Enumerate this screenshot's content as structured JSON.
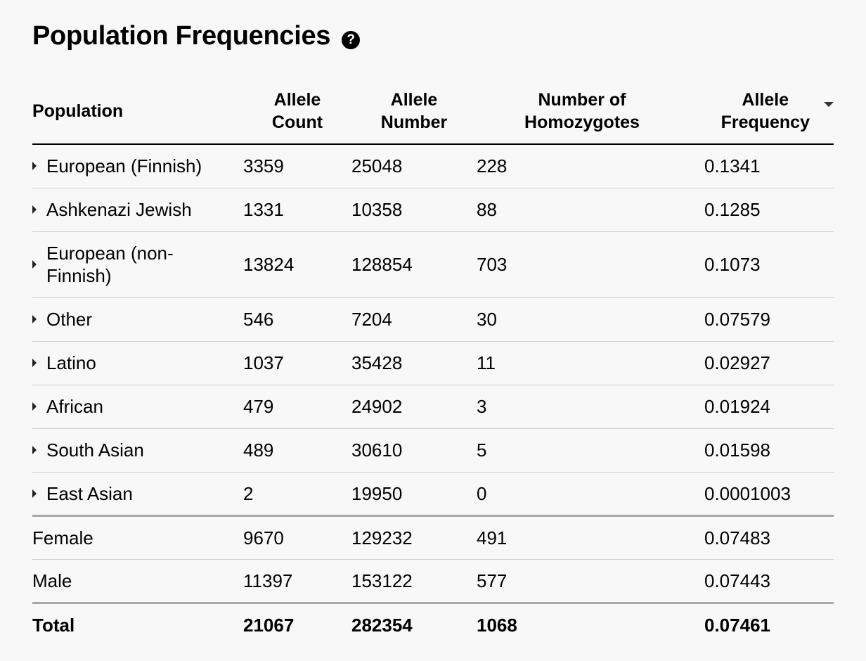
{
  "title": "Population Frequencies",
  "help_icon": "question-circle-icon",
  "headers": {
    "population": "Population",
    "allele_count_l1": "Allele",
    "allele_count_l2": "Count",
    "allele_number_l1": "Allele",
    "allele_number_l2": "Number",
    "homozygotes_l1": "Number of",
    "homozygotes_l2": "Homozygotes",
    "allele_freq_l1": "Allele",
    "allele_freq_l2": "Frequency",
    "sort_icon": "sort-descending-caret-icon"
  },
  "populations": [
    {
      "name": "European (Finnish)",
      "count": "3359",
      "number": "25048",
      "hom": "228",
      "freq": "0.1341"
    },
    {
      "name": "Ashkenazi Jewish",
      "count": "1331",
      "number": "10358",
      "hom": "88",
      "freq": "0.1285"
    },
    {
      "name_l1": "European (non-",
      "name_l2": "Finnish)",
      "count": "13824",
      "number": "128854",
      "hom": "703",
      "freq": "0.1073"
    },
    {
      "name": "Other",
      "count": "546",
      "number": "7204",
      "hom": "30",
      "freq": "0.07579"
    },
    {
      "name": "Latino",
      "count": "1037",
      "number": "35428",
      "hom": "11",
      "freq": "0.02927"
    },
    {
      "name": "African",
      "count": "479",
      "number": "24902",
      "hom": "3",
      "freq": "0.01924"
    },
    {
      "name": "South Asian",
      "count": "489",
      "number": "30610",
      "hom": "5",
      "freq": "0.01598"
    },
    {
      "name": "East Asian",
      "count": "2",
      "number": "19950",
      "hom": "0",
      "freq": "0.0001003"
    }
  ],
  "sexes": [
    {
      "name": "Female",
      "count": "9670",
      "number": "129232",
      "hom": "491",
      "freq": "0.07483"
    },
    {
      "name": "Male",
      "count": "11397",
      "number": "153122",
      "hom": "577",
      "freq": "0.07443"
    }
  ],
  "total": {
    "name": "Total",
    "count": "21067",
    "number": "282354",
    "hom": "1068",
    "freq": "0.07461"
  }
}
